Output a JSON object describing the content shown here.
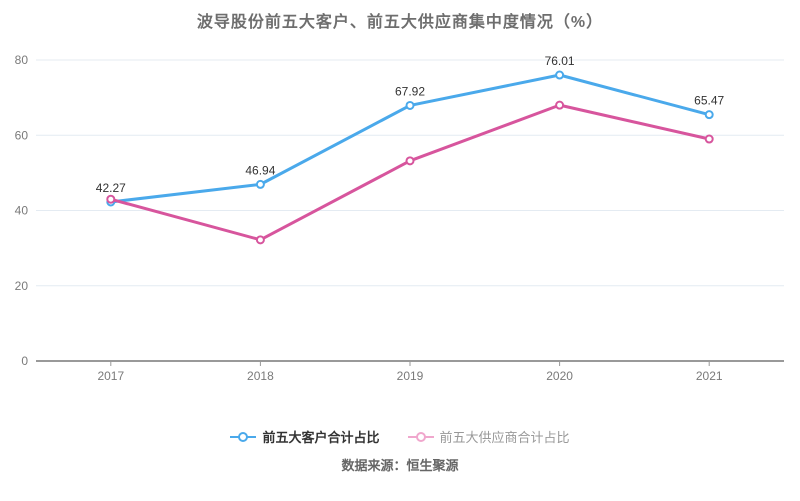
{
  "chart_data": {
    "type": "line",
    "title": "波导股份前五大客户、前五大供应商集中度情况（%）",
    "categories": [
      "2017",
      "2018",
      "2019",
      "2020",
      "2021"
    ],
    "series": [
      {
        "name": "前五大客户合计占比",
        "color": "#4aa9eb",
        "values": [
          42.27,
          46.94,
          67.92,
          76.01,
          65.47
        ],
        "data_labels": [
          "42.27",
          "46.94",
          "67.92",
          "76.01",
          "65.47"
        ],
        "legend_icon_color": "#4aa9eb",
        "legend_text_color": "#333333"
      },
      {
        "name": "前五大供应商合计占比",
        "color": "#d7559d",
        "values": [
          43.0,
          32.2,
          53.2,
          68.0,
          59.0
        ],
        "data_labels": [],
        "legend_icon_color": "#f0a7cd",
        "legend_text_color": "#999999"
      }
    ],
    "xlabel": "",
    "ylabel": "",
    "ylim": [
      0,
      80
    ],
    "y_ticks": [
      0,
      20,
      40,
      60,
      80
    ],
    "grid": true,
    "legend_position": "bottom",
    "marker": "open-circle"
  },
  "footer": {
    "text": "数据来源：恒生聚源"
  },
  "colors": {
    "grid_line": "#e4ebf2",
    "axis_line": "#333333",
    "tick_mark": "#999999",
    "axis_label": "#7a7a7a",
    "data_label": "#333333",
    "title": "#6e6e6e",
    "background": "#ffffff"
  }
}
